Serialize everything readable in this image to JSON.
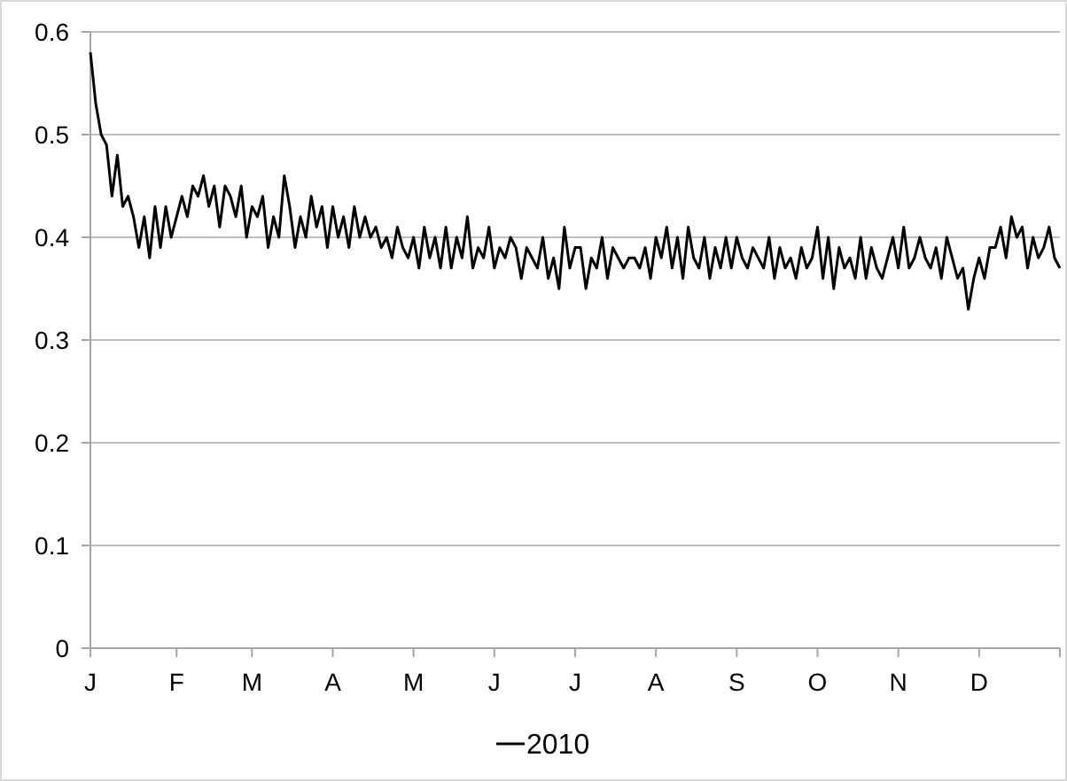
{
  "chart_data": {
    "type": "line",
    "legend": "bottom",
    "grid": "y",
    "marker": "none",
    "line_style": "solid",
    "categories": [
      "J",
      null,
      null,
      null,
      null,
      null,
      null,
      null,
      null,
      null,
      null,
      null,
      null,
      null,
      null,
      null,
      "F",
      null,
      null,
      null,
      null,
      null,
      null,
      null,
      null,
      null,
      null,
      null,
      null,
      null,
      "M",
      null,
      null,
      null,
      null,
      null,
      null,
      null,
      null,
      null,
      null,
      null,
      null,
      null,
      null,
      "A",
      null,
      null,
      null,
      null,
      null,
      null,
      null,
      null,
      null,
      null,
      null,
      null,
      null,
      null,
      "M",
      null,
      null,
      null,
      null,
      null,
      null,
      null,
      null,
      null,
      null,
      null,
      null,
      null,
      null,
      "J",
      null,
      null,
      null,
      null,
      null,
      null,
      null,
      null,
      null,
      null,
      null,
      null,
      null,
      null,
      "J",
      null,
      null,
      null,
      null,
      null,
      null,
      null,
      null,
      null,
      null,
      null,
      null,
      null,
      null,
      "A",
      null,
      null,
      null,
      null,
      null,
      null,
      null,
      null,
      null,
      null,
      null,
      null,
      null,
      null,
      "S",
      null,
      null,
      null,
      null,
      null,
      null,
      null,
      null,
      null,
      null,
      null,
      null,
      null,
      null,
      "O",
      null,
      null,
      null,
      null,
      null,
      null,
      null,
      null,
      null,
      null,
      null,
      null,
      null,
      null,
      "N",
      null,
      null,
      null,
      null,
      null,
      null,
      null,
      null,
      null,
      null,
      null,
      null,
      null,
      null,
      "D",
      null,
      null,
      null,
      null,
      null,
      null,
      null,
      null,
      null,
      null,
      null,
      null,
      null,
      null,
      null
    ],
    "series": [
      {
        "name": "2010",
        "color": "#000000",
        "values": [
          0.58,
          0.53,
          0.5,
          0.49,
          0.44,
          0.48,
          0.43,
          0.44,
          0.42,
          0.39,
          0.42,
          0.38,
          0.43,
          0.39,
          0.43,
          0.4,
          0.42,
          0.44,
          0.42,
          0.45,
          0.44,
          0.46,
          0.43,
          0.45,
          0.41,
          0.45,
          0.44,
          0.42,
          0.45,
          0.4,
          0.43,
          0.42,
          0.44,
          0.39,
          0.42,
          0.4,
          0.46,
          0.43,
          0.39,
          0.42,
          0.4,
          0.44,
          0.41,
          0.43,
          0.39,
          0.43,
          0.4,
          0.42,
          0.39,
          0.43,
          0.4,
          0.42,
          0.4,
          0.41,
          0.39,
          0.4,
          0.38,
          0.41,
          0.39,
          0.38,
          0.4,
          0.37,
          0.41,
          0.38,
          0.4,
          0.37,
          0.41,
          0.37,
          0.4,
          0.38,
          0.42,
          0.37,
          0.39,
          0.38,
          0.41,
          0.37,
          0.39,
          0.38,
          0.4,
          0.39,
          0.36,
          0.39,
          0.38,
          0.37,
          0.4,
          0.36,
          0.38,
          0.35,
          0.41,
          0.37,
          0.39,
          0.39,
          0.35,
          0.38,
          0.37,
          0.4,
          0.36,
          0.39,
          0.38,
          0.37,
          0.38,
          0.38,
          0.37,
          0.39,
          0.36,
          0.4,
          0.38,
          0.41,
          0.37,
          0.4,
          0.36,
          0.41,
          0.38,
          0.37,
          0.4,
          0.36,
          0.39,
          0.37,
          0.4,
          0.37,
          0.4,
          0.38,
          0.37,
          0.39,
          0.38,
          0.37,
          0.4,
          0.36,
          0.39,
          0.37,
          0.38,
          0.36,
          0.39,
          0.37,
          0.38,
          0.41,
          0.36,
          0.4,
          0.35,
          0.39,
          0.37,
          0.38,
          0.36,
          0.4,
          0.36,
          0.39,
          0.37,
          0.36,
          0.38,
          0.4,
          0.37,
          0.41,
          0.37,
          0.38,
          0.4,
          0.38,
          0.37,
          0.39,
          0.36,
          0.4,
          0.38,
          0.36,
          0.37,
          0.33,
          0.36,
          0.38,
          0.36,
          0.39,
          0.39,
          0.41,
          0.38,
          0.42,
          0.4,
          0.41,
          0.37,
          0.4,
          0.38,
          0.39,
          0.41,
          0.38,
          0.37
        ]
      }
    ],
    "ylim": [
      0,
      0.6
    ],
    "yticks": [
      0,
      0.1,
      0.2,
      0.3,
      0.4,
      0.5,
      0.6
    ]
  }
}
